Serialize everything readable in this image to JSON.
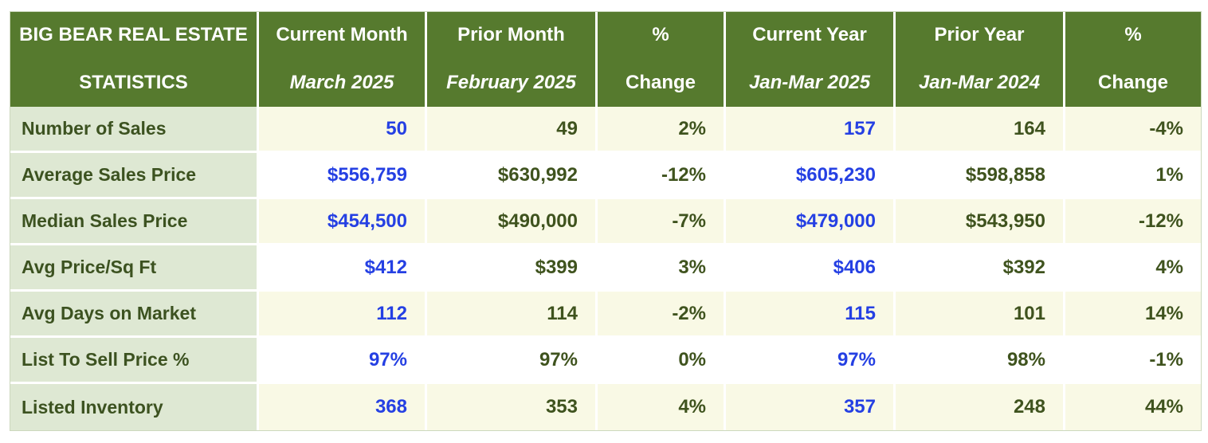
{
  "colors": {
    "header_bg": "#567a2e",
    "header_text": "#ffffff",
    "label_bg": "#dee8d3",
    "label_text": "#3c5220",
    "value_green": "#3f531e",
    "value_blue": "#2540e3",
    "row_cream": "#f9f9e5",
    "row_white": "#ffffff",
    "grid": "#ffffff",
    "outer_border": "#ccd8bd",
    "page_bg": "#ffffff"
  },
  "table": {
    "title_line1": "BIG BEAR REAL ESTATE",
    "title_line2": "STATISTICS",
    "columns": [
      {
        "line1": "Current Month",
        "line2": "March 2025",
        "line2_style": "italic",
        "values_blue": true
      },
      {
        "line1": "Prior Month",
        "line2": "February 2025",
        "line2_style": "italic",
        "values_blue": false
      },
      {
        "line1": "%",
        "line2": "Change",
        "line2_style": "normal",
        "values_blue": false
      },
      {
        "line1": "Current Year",
        "line2": "Jan-Mar 2025",
        "line2_style": "italic",
        "values_blue": true
      },
      {
        "line1": "Prior Year",
        "line2": "Jan-Mar 2024",
        "line2_style": "italic",
        "values_blue": false
      },
      {
        "line1": "%",
        "line2": "Change",
        "line2_style": "normal",
        "values_blue": false
      }
    ]
  },
  "chart_data": {
    "type": "table",
    "title": "BIG BEAR REAL ESTATE STATISTICS",
    "columns": [
      "Statistic",
      "Current Month March 2025",
      "Prior Month February 2025",
      "% Change",
      "Current Year Jan-Mar 2025",
      "Prior Year Jan-Mar 2024",
      "% Change"
    ],
    "rows": [
      [
        "Number of Sales",
        "50",
        "49",
        "2%",
        "157",
        "164",
        "-4%"
      ],
      [
        "Average Sales Price",
        "$556,759",
        "$630,992",
        "-12%",
        "$605,230",
        "$598,858",
        "1%"
      ],
      [
        "Median Sales Price",
        "$454,500",
        "$490,000",
        "-7%",
        "$479,000",
        "$543,950",
        "-12%"
      ],
      [
        "Avg Price/Sq Ft",
        "$412",
        "$399",
        "3%",
        "$406",
        "$392",
        "4%"
      ],
      [
        "Avg Days on Market",
        "112",
        "114",
        "-2%",
        "115",
        "101",
        "14%"
      ],
      [
        "List To Sell Price %",
        "97%",
        "97%",
        "0%",
        "97%",
        "98%",
        "-1%"
      ],
      [
        "Listed Inventory",
        "368",
        "353",
        "4%",
        "357",
        "248",
        "44%"
      ]
    ],
    "blue_value_column_indexes": [
      1,
      4
    ],
    "layout": {
      "striped_rows": "cream-first",
      "gridlines": "white"
    }
  }
}
